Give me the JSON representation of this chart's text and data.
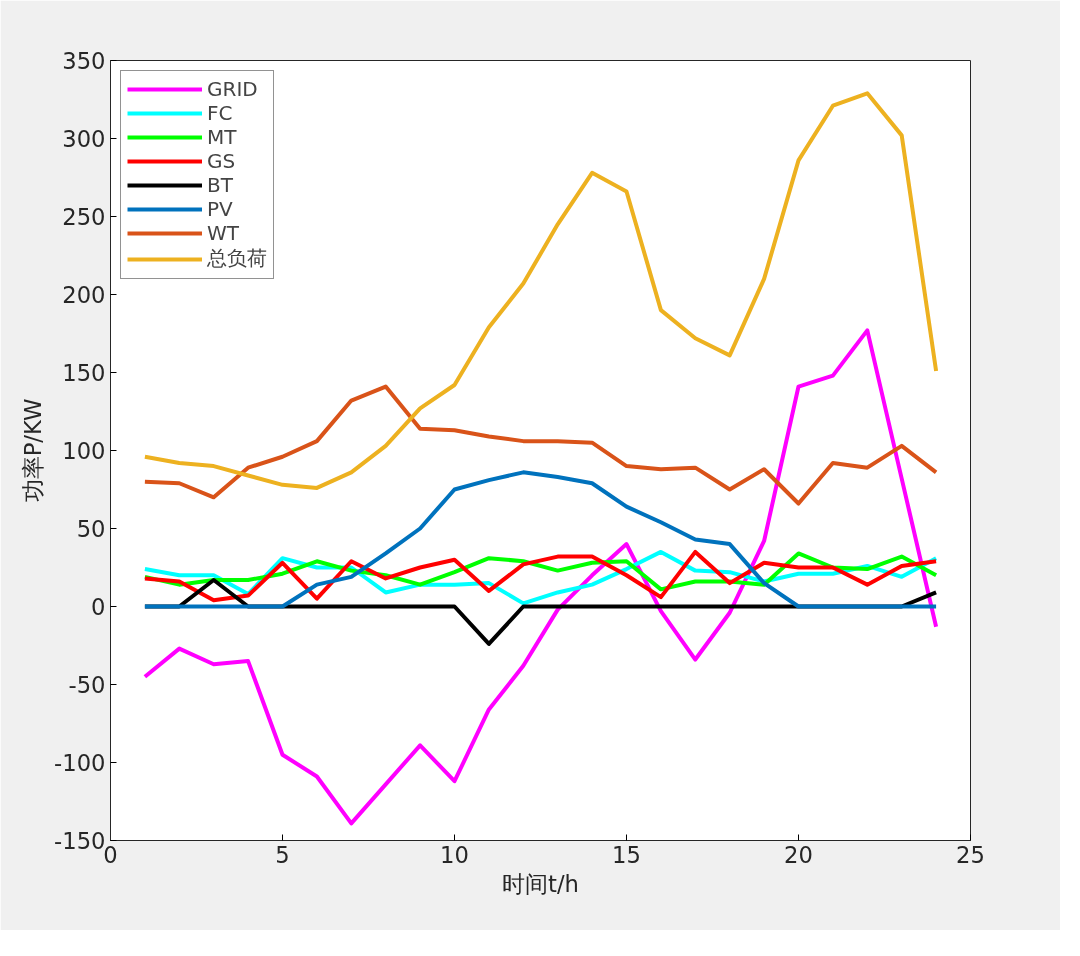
{
  "chart_data": {
    "type": "line",
    "xlabel": "时间t/h",
    "ylabel": "功率P/KW",
    "x": [
      1,
      2,
      3,
      4,
      5,
      6,
      7,
      8,
      9,
      10,
      11,
      12,
      13,
      14,
      15,
      16,
      17,
      18,
      19,
      20,
      21,
      22,
      23,
      24
    ],
    "xlim": [
      0,
      25
    ],
    "xticks": [
      0,
      5,
      10,
      15,
      20,
      25
    ],
    "ylim": [
      -150,
      350
    ],
    "yticks": [
      -150,
      -100,
      -50,
      0,
      50,
      100,
      150,
      200,
      250,
      300,
      350
    ],
    "grid": false,
    "legend": "top left",
    "marker": "none",
    "line_style": "solid",
    "series": [
      {
        "name": "GRID",
        "color": "#ff00ff",
        "values": [
          -45,
          -27,
          -37,
          -35,
          -95,
          -109,
          -139,
          -114,
          -89,
          -112,
          -66,
          -38,
          -2,
          20,
          40,
          -3,
          -34,
          -4,
          42,
          141,
          148,
          177,
          82,
          -13
        ]
      },
      {
        "name": "FC",
        "color": "#00ffff",
        "values": [
          24,
          20,
          20,
          8,
          31,
          25,
          25,
          9,
          14,
          14,
          15,
          2,
          9,
          14,
          24,
          35,
          23,
          22,
          16,
          21,
          21,
          26,
          19,
          31
        ]
      },
      {
        "name": "MT",
        "color": "#00ff00",
        "values": [
          19,
          14,
          17,
          17,
          21,
          29,
          23,
          20,
          14,
          22,
          31,
          29,
          23,
          28,
          29,
          11,
          16,
          16,
          14,
          34,
          25,
          24,
          32,
          20
        ]
      },
      {
        "name": "GS",
        "color": "#ff0000",
        "values": [
          18,
          16,
          4,
          7,
          28,
          5,
          29,
          18,
          25,
          30,
          10,
          27,
          32,
          32,
          20,
          6,
          35,
          15,
          28,
          25,
          25,
          14,
          26,
          29
        ]
      },
      {
        "name": "BT",
        "color": "#000000",
        "values": [
          0,
          0,
          17,
          0,
          0,
          0,
          0,
          0,
          0,
          0,
          -24,
          0,
          0,
          0,
          0,
          0,
          0,
          0,
          0,
          0,
          0,
          0,
          0,
          9
        ]
      },
      {
        "name": "PV",
        "color": "#0072bd",
        "values": [
          0,
          0,
          0,
          0,
          0,
          14,
          19,
          34,
          50,
          75,
          81,
          86,
          83,
          79,
          64,
          54,
          43,
          40,
          15,
          0,
          0,
          0,
          0,
          0
        ]
      },
      {
        "name": "WT",
        "color": "#d95319",
        "values": [
          80,
          79,
          70,
          89,
          96,
          106,
          132,
          141,
          114,
          113,
          109,
          106,
          106,
          105,
          90,
          88,
          89,
          75,
          88,
          66,
          92,
          89,
          103,
          86
        ]
      },
      {
        "name": "总负荷",
        "color": "#edb120",
        "values": [
          96,
          92,
          90,
          84,
          78,
          76,
          86,
          103,
          127,
          142,
          179,
          207,
          245,
          278,
          266,
          190,
          172,
          161,
          210,
          286,
          321,
          329,
          302,
          151
        ]
      }
    ]
  }
}
